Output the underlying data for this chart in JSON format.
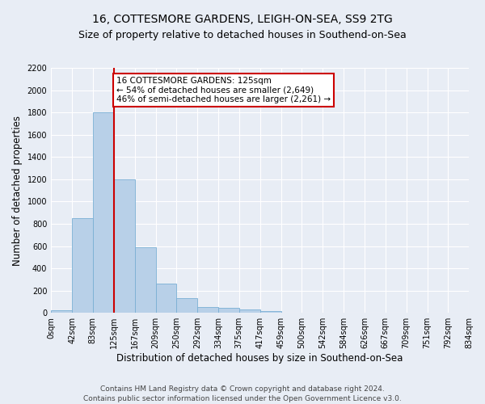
{
  "title_line1": "16, COTTESMORE GARDENS, LEIGH-ON-SEA, SS9 2TG",
  "title_line2": "Size of property relative to detached houses in Southend-on-Sea",
  "xlabel": "Distribution of detached houses by size in Southend-on-Sea",
  "ylabel": "Number of detached properties",
  "bar_values": [
    25,
    850,
    1800,
    1200,
    590,
    260,
    130,
    50,
    45,
    30,
    15,
    0,
    0,
    0,
    0,
    0,
    0,
    0,
    0,
    0
  ],
  "bin_edges": [
    0,
    42,
    83,
    125,
    167,
    209,
    250,
    292,
    334,
    375,
    417,
    459,
    500,
    542,
    584,
    626,
    667,
    709,
    751,
    792,
    834
  ],
  "tick_labels": [
    "0sqm",
    "42sqm",
    "83sqm",
    "125sqm",
    "167sqm",
    "209sqm",
    "250sqm",
    "292sqm",
    "334sqm",
    "375sqm",
    "417sqm",
    "459sqm",
    "500sqm",
    "542sqm",
    "584sqm",
    "626sqm",
    "667sqm",
    "709sqm",
    "751sqm",
    "792sqm",
    "834sqm"
  ],
  "bar_color": "#b8d0e8",
  "bar_edgecolor": "#7aafd4",
  "vline_x": 125,
  "vline_color": "#cc0000",
  "annotation_text": "16 COTTESMORE GARDENS: 125sqm\n← 54% of detached houses are smaller (2,649)\n46% of semi-detached houses are larger (2,261) →",
  "annotation_box_edgecolor": "#cc0000",
  "ylim": [
    0,
    2200
  ],
  "yticks": [
    0,
    200,
    400,
    600,
    800,
    1000,
    1200,
    1400,
    1600,
    1800,
    2000,
    2200
  ],
  "footer_line1": "Contains HM Land Registry data © Crown copyright and database right 2024.",
  "footer_line2": "Contains public sector information licensed under the Open Government Licence v3.0.",
  "bg_color": "#e8edf5",
  "plot_bg_color": "#e8edf5",
  "grid_color": "#ffffff",
  "title_fontsize": 10,
  "subtitle_fontsize": 9,
  "label_fontsize": 8.5,
  "tick_fontsize": 7,
  "footer_fontsize": 6.5,
  "annotation_fontsize": 7.5
}
